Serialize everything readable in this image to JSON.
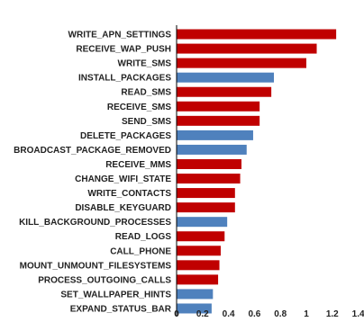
{
  "chart_data": {
    "type": "bar",
    "orientation": "horizontal",
    "title": "",
    "xlabel": "",
    "ylabel": "",
    "xlim": [
      0,
      1.4
    ],
    "xticks": [
      "0",
      "0.2",
      "0.4",
      "0.6",
      "0.8",
      "1",
      "1.2",
      "1.4"
    ],
    "grid": false,
    "colors": {
      "red": "#c00000",
      "blue": "#4f81bd"
    },
    "categories": [
      "WRITE_APN_SETTINGS",
      "RECEIVE_WAP_PUSH",
      "WRITE_SMS",
      "INSTALL_PACKAGES",
      "READ_SMS",
      "RECEIVE_SMS",
      "SEND_SMS",
      "DELETE_PACKAGES",
      "BROADCAST_PACKAGE_REMOVED",
      "RECEIVE_MMS",
      "CHANGE_WIFI_STATE",
      "WRITE_CONTACTS",
      "DISABLE_KEYGUARD",
      "KILL_BACKGROUND_PROCESSES",
      "READ_LOGS",
      "CALL_PHONE",
      "MOUNT_UNMOUNT_FILESYSTEMS",
      "PROCESS_OUTGOING_CALLS",
      "SET_WALLPAPER_HINTS",
      "EXPAND_STATUS_BAR"
    ],
    "values": [
      1.23,
      1.08,
      1.0,
      0.75,
      0.73,
      0.64,
      0.64,
      0.59,
      0.54,
      0.5,
      0.49,
      0.45,
      0.45,
      0.39,
      0.37,
      0.34,
      0.33,
      0.32,
      0.28,
      0.27
    ],
    "bar_colors": [
      "red",
      "red",
      "red",
      "blue",
      "red",
      "red",
      "red",
      "blue",
      "blue",
      "red",
      "red",
      "red",
      "red",
      "blue",
      "red",
      "red",
      "red",
      "red",
      "blue",
      "blue"
    ]
  }
}
